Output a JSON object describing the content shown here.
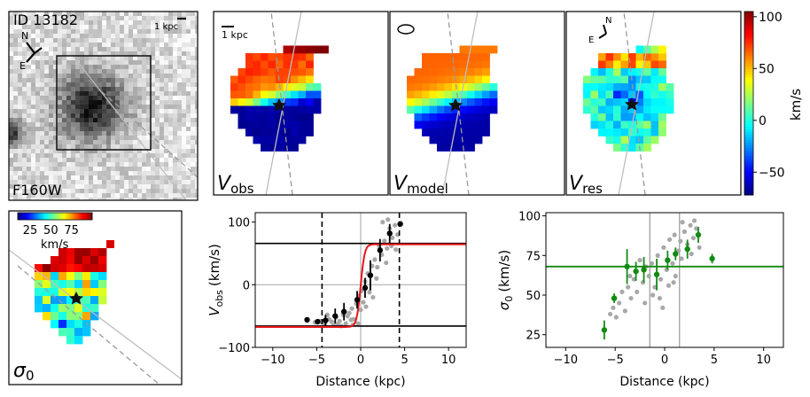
{
  "image": {
    "object_id_label": "ID 13182",
    "scale_bar_label": "1 kpc",
    "filter_label": "F160W",
    "compass": {
      "north": "N",
      "east": "E"
    }
  },
  "velocity_maps": {
    "scale_bar_label": "1 kpc",
    "panels": [
      {
        "key": "obs",
        "label_main": "V",
        "label_sub": "obs"
      },
      {
        "key": "model",
        "label_main": "V",
        "label_sub": "model"
      },
      {
        "key": "res",
        "label_main": "V",
        "label_sub": "res"
      }
    ],
    "compass": {
      "north": "N",
      "east": "E"
    },
    "colorbar": {
      "label": "km/s",
      "ticks": [
        100,
        50,
        0,
        -50
      ],
      "range": [
        -72,
        105
      ]
    }
  },
  "sigma_map": {
    "label_main": "σ",
    "label_sub": "0",
    "colorbar": {
      "label": "km/s",
      "ticks": [
        25,
        50,
        75
      ],
      "range": [
        10,
        100
      ]
    }
  },
  "chart_data": [
    {
      "type": "line",
      "id": "rotation_curve",
      "xlabel": "Distance (kpc)",
      "ylabel_main": "V",
      "ylabel_sub": "obs",
      "ylabel_unit": "(km/s)",
      "xlim": [
        -12,
        12
      ],
      "ylim": [
        -100,
        115
      ],
      "xticks": [
        -10,
        -5,
        0,
        5,
        10
      ],
      "yticks": [
        -100,
        0,
        100
      ],
      "model_curve": {
        "color": "#e8161b",
        "vmax": 66,
        "offset": -1.5,
        "rt": 0.45
      },
      "hlines": [
        66,
        -66
      ],
      "vlines_dashed": [
        -4.4,
        4.4
      ],
      "reference_lines": {
        "x": 0,
        "y": 0
      },
      "points": [
        {
          "x": -6.1,
          "y": -56,
          "err": 0
        },
        {
          "x": -4.9,
          "y": -59,
          "err": 0
        },
        {
          "x": -4.0,
          "y": -57,
          "err": 9
        },
        {
          "x": -2.9,
          "y": -50,
          "err": 12
        },
        {
          "x": -1.9,
          "y": -43,
          "err": 14
        },
        {
          "x": -0.4,
          "y": -24,
          "err": 14
        },
        {
          "x": 0.5,
          "y": -5,
          "err": 16
        },
        {
          "x": 1.1,
          "y": 15,
          "err": 24
        },
        {
          "x": 2.2,
          "y": 55,
          "err": 18
        },
        {
          "x": 3.3,
          "y": 82,
          "err": 15
        },
        {
          "x": 4.5,
          "y": 97,
          "err": 0
        }
      ],
      "scatter": [
        [
          -5.2,
          -60
        ],
        [
          -4.6,
          -58
        ],
        [
          -4.1,
          -62
        ],
        [
          -3.6,
          -55
        ],
        [
          -3.1,
          -65
        ],
        [
          -2.8,
          -52
        ],
        [
          -2.4,
          -58
        ],
        [
          -2.0,
          -48
        ],
        [
          -1.7,
          -62
        ],
        [
          -1.3,
          -45
        ],
        [
          -1.0,
          -38
        ],
        [
          -0.8,
          -55
        ],
        [
          -0.5,
          -30
        ],
        [
          -0.2,
          -18
        ],
        [
          0.1,
          -10
        ],
        [
          0.3,
          -28
        ],
        [
          0.5,
          5
        ],
        [
          0.8,
          18
        ],
        [
          1.0,
          -12
        ],
        [
          1.3,
          30
        ],
        [
          1.6,
          40
        ],
        [
          1.9,
          28
        ],
        [
          2.1,
          62
        ],
        [
          2.4,
          48
        ],
        [
          2.7,
          70
        ],
        [
          3.0,
          58
        ],
        [
          3.3,
          90
        ],
        [
          3.6,
          75
        ],
        [
          3.9,
          95
        ],
        [
          4.2,
          80
        ],
        [
          -3.8,
          -48
        ],
        [
          -2.2,
          -66
        ],
        [
          -1.5,
          -50
        ],
        [
          -0.9,
          -64
        ],
        [
          0.6,
          -35
        ],
        [
          1.8,
          10
        ],
        [
          2.9,
          35
        ],
        [
          3.5,
          62
        ],
        [
          -4.4,
          -60
        ],
        [
          -3.3,
          -59
        ],
        [
          -2.6,
          -63
        ],
        [
          0.0,
          -40
        ],
        [
          1.4,
          -20
        ],
        [
          2.5,
          100
        ],
        [
          3.1,
          104
        ],
        [
          -1.1,
          -56
        ],
        [
          -0.3,
          -62
        ],
        [
          4.0,
          56
        ]
      ]
    },
    {
      "type": "scatter",
      "id": "dispersion_profile",
      "xlabel": "Distance (kpc)",
      "ylabel_main": "σ",
      "ylabel_sub": "0",
      "ylabel_unit": "(km/s)",
      "xlim": [
        -12,
        12
      ],
      "ylim": [
        17,
        102
      ],
      "xticks": [
        -10,
        -5,
        0,
        5,
        10
      ],
      "yticks": [
        25,
        50,
        75,
        100
      ],
      "hline": 68,
      "vlines": [
        -1.5,
        1.5
      ],
      "points": [
        {
          "x": -6.1,
          "y": 28,
          "err": 6
        },
        {
          "x": -5.1,
          "y": 48,
          "err": 3
        },
        {
          "x": -3.8,
          "y": 68,
          "err": 11
        },
        {
          "x": -2.9,
          "y": 65,
          "err": 6
        },
        {
          "x": -2.1,
          "y": 66,
          "err": 8
        },
        {
          "x": -0.8,
          "y": 63,
          "err": 10
        },
        {
          "x": 0.3,
          "y": 72,
          "err": 6
        },
        {
          "x": 1.1,
          "y": 76,
          "err": 4
        },
        {
          "x": 2.3,
          "y": 79,
          "err": 6
        },
        {
          "x": 3.4,
          "y": 88,
          "err": 5
        },
        {
          "x": 4.8,
          "y": 73,
          "err": 3
        }
      ],
      "scatter": [
        [
          -5.5,
          38
        ],
        [
          -5.2,
          42
        ],
        [
          -4.9,
          36
        ],
        [
          -4.6,
          45
        ],
        [
          -4.3,
          52
        ],
        [
          -4.0,
          40
        ],
        [
          -3.7,
          55
        ],
        [
          -3.4,
          48
        ],
        [
          -3.1,
          60
        ],
        [
          -2.8,
          52
        ],
        [
          -2.5,
          72
        ],
        [
          -2.2,
          58
        ],
        [
          -1.9,
          68
        ],
        [
          -1.6,
          62
        ],
        [
          -1.3,
          70
        ],
        [
          -1.0,
          55
        ],
        [
          -0.7,
          75
        ],
        [
          -0.4,
          60
        ],
        [
          -0.1,
          80
        ],
        [
          0.2,
          66
        ],
        [
          0.5,
          85
        ],
        [
          0.8,
          70
        ],
        [
          1.1,
          62
        ],
        [
          1.4,
          78
        ],
        [
          1.7,
          73
        ],
        [
          2.0,
          90
        ],
        [
          2.3,
          82
        ],
        [
          2.6,
          94
        ],
        [
          2.9,
          86
        ],
        [
          3.2,
          92
        ],
        [
          3.5,
          80
        ],
        [
          -2.0,
          45
        ],
        [
          -1.2,
          50
        ],
        [
          -0.5,
          48
        ],
        [
          0.4,
          56
        ],
        [
          1.0,
          88
        ],
        [
          1.8,
          96
        ],
        [
          2.7,
          76
        ],
        [
          -3.5,
          62
        ],
        [
          -0.2,
          42
        ],
        [
          0.9,
          58
        ],
        [
          1.6,
          84
        ],
        [
          3.0,
          97
        ]
      ]
    }
  ]
}
